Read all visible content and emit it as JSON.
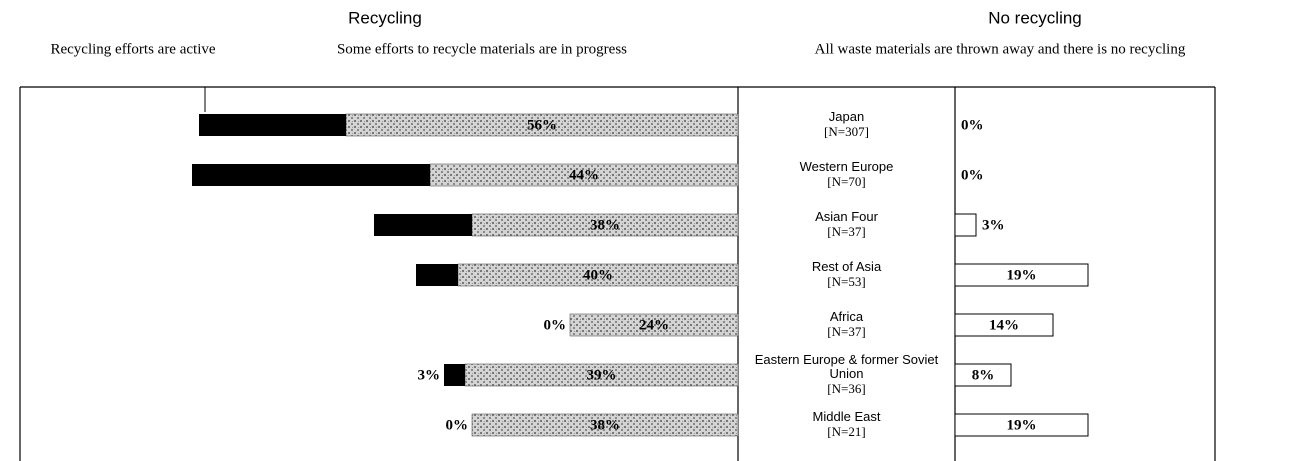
{
  "chart_data": {
    "type": "diverging-bar",
    "group_labels": [
      "Recycling",
      "No recycling"
    ],
    "categories": [
      "Japan",
      "Western Europe",
      "Asian Four",
      "Rest of Asia",
      "Africa",
      "Eastern Europe & former Soviet Union",
      "Middle East"
    ],
    "n_labels": [
      "[N=307]",
      "[N=70]",
      "[N=37]",
      "[N=53]",
      "[N=37]",
      "[N=36]",
      "[N=21]"
    ],
    "series": [
      {
        "name": "Recycling efforts are active",
        "color": "#000000",
        "side": "left",
        "values": [
          21,
          34,
          14,
          6,
          0,
          3,
          0
        ],
        "value_labels": [
          "21%",
          "34%",
          "14%",
          "6%",
          "0%",
          "3%",
          "0%"
        ]
      },
      {
        "name": "Some efforts to recycle materials are in progress",
        "color": "#bdbdbd",
        "side": "left",
        "values": [
          56,
          44,
          38,
          40,
          24,
          39,
          38
        ],
        "value_labels": [
          "56%",
          "44%",
          "38%",
          "40%",
          "24%",
          "39%",
          "38%"
        ]
      },
      {
        "name": "All waste materials are thrown away and there is no recycling",
        "color": "#ffffff",
        "side": "right",
        "values": [
          0,
          0,
          3,
          19,
          14,
          8,
          19
        ],
        "value_labels": [
          "0%",
          "0%",
          "3%",
          "19%",
          "14%",
          "8%",
          "19%"
        ]
      }
    ]
  }
}
